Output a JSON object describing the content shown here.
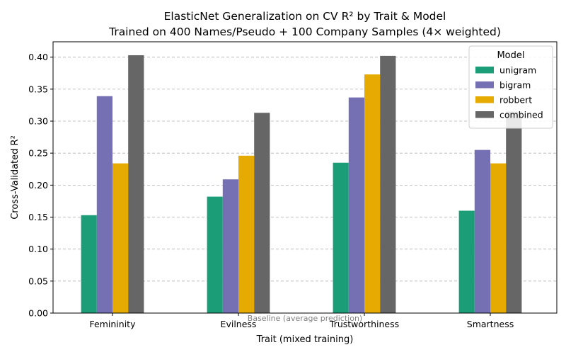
{
  "chart_data": {
    "type": "bar",
    "title": "ElasticNet Generalization on CV R² by Trait & Model",
    "subtitle": "Trained on 400 Names/Pseudo + 100 Company Samples (4× weighted)",
    "xlabel": "Trait (mixed training)",
    "ylabel": "Cross-Validated R²",
    "categories": [
      "Femininity",
      "Evilness",
      "Trustworthiness",
      "Smartness"
    ],
    "series": [
      {
        "name": "unigram",
        "color": "#1b9e77",
        "values": [
          0.153,
          0.182,
          0.235,
          0.16
        ]
      },
      {
        "name": "bigram",
        "color": "#7570b3",
        "values": [
          0.339,
          0.209,
          0.337,
          0.255
        ]
      },
      {
        "name": "robbert",
        "color": "#e6ab02",
        "values": [
          0.234,
          0.246,
          0.373,
          0.234
        ]
      },
      {
        "name": "combined",
        "color": "#666666",
        "values": [
          0.403,
          0.313,
          0.402,
          0.315
        ]
      }
    ],
    "ylim": [
      0,
      0.424
    ],
    "yticks": [
      "0.00",
      "0.05",
      "0.10",
      "0.15",
      "0.20",
      "0.25",
      "0.30",
      "0.35",
      "0.40"
    ],
    "grid": true,
    "legend": {
      "title": "Model",
      "placement": "top-right"
    },
    "baseline": {
      "value": 0,
      "label": "Baseline (average prediction)",
      "color": "#808080"
    }
  }
}
